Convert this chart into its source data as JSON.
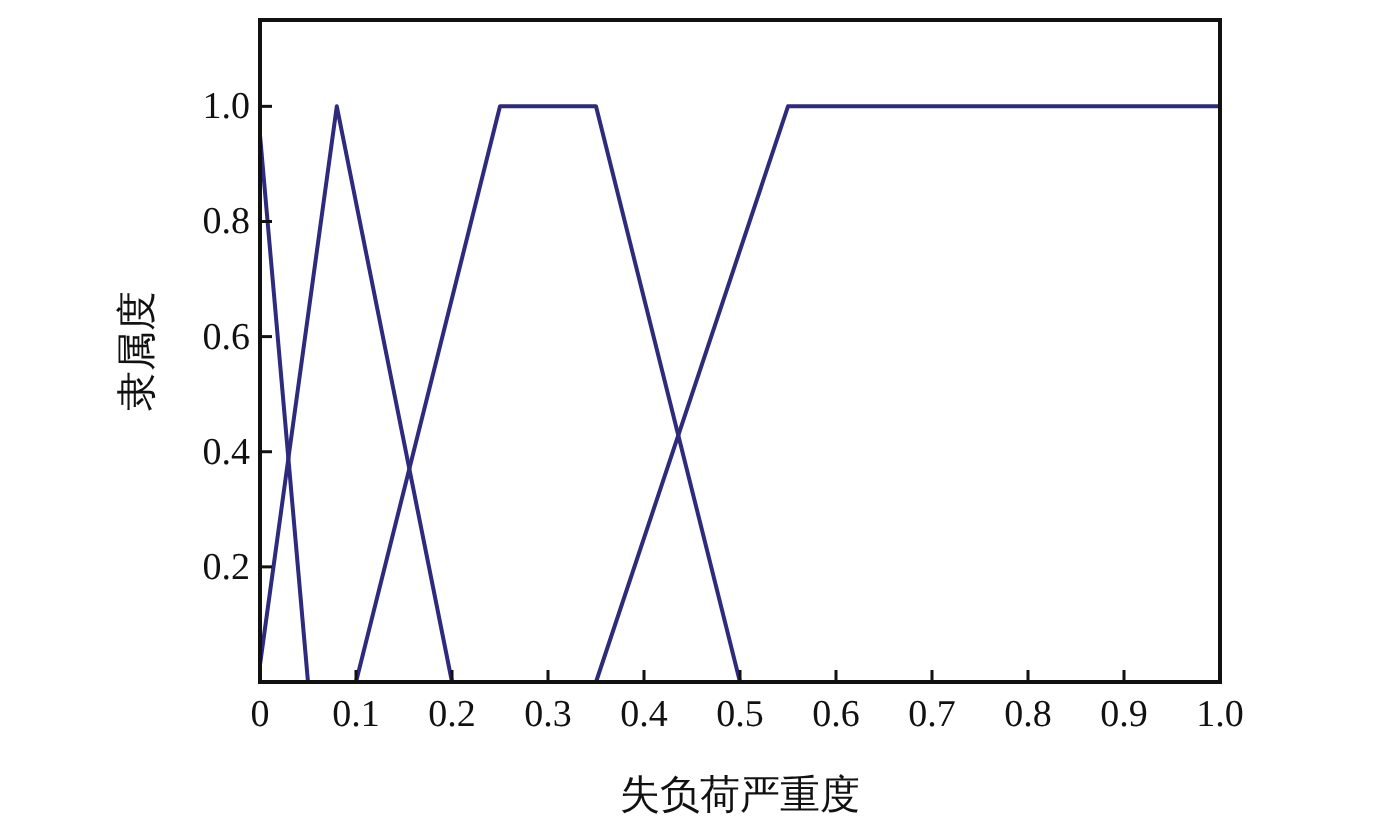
{
  "chart_data": {
    "type": "line",
    "xlabel": "失负荷严重度",
    "ylabel": "隶属度",
    "xlim": [
      0,
      1
    ],
    "ylim": [
      0,
      1.15
    ],
    "xticks": [
      {
        "value": 0,
        "label": "0"
      },
      0.1,
      0.2,
      0.3,
      0.4,
      0.5,
      0.6,
      0.7,
      0.8,
      0.9,
      {
        "value": 1,
        "label": "1.0"
      }
    ],
    "yticks": [
      0.2,
      0.4,
      0.6,
      0.8,
      {
        "value": 1,
        "label": "1.0"
      }
    ],
    "grid": false,
    "marker": "none",
    "line_style": "solid",
    "series": [
      {
        "color": "#2e2a7e",
        "x": [
          0,
          0.05
        ],
        "values": [
          0.95,
          0
        ]
      },
      {
        "color": "#2e2a7e",
        "x": [
          0,
          0.08,
          0.2
        ],
        "values": [
          0.03,
          1,
          0
        ]
      },
      {
        "color": "#2e2a7e",
        "x": [
          0.1,
          0.25,
          0.35,
          0.5
        ],
        "values": [
          0,
          1,
          1,
          0
        ]
      },
      {
        "color": "#2e2a7e",
        "x": [
          0.35,
          0.55,
          1
        ],
        "values": [
          0,
          1,
          1
        ]
      }
    ]
  }
}
